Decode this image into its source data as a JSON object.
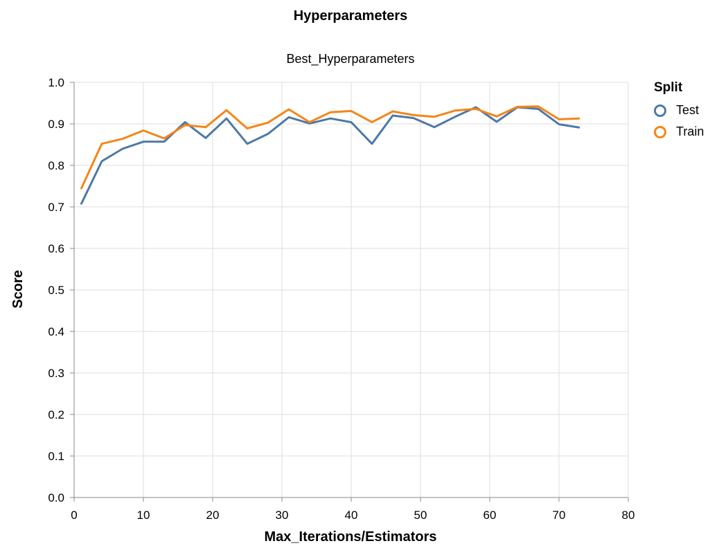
{
  "chart_data": {
    "type": "line",
    "title": "Hyperparameters",
    "subtitle": "Best_Hyperparameters",
    "xlabel": "Max_Iterations/Estimators",
    "ylabel": "Score",
    "xlim": [
      0,
      80
    ],
    "ylim": [
      0,
      1
    ],
    "x_ticks": [
      "0",
      "10",
      "20",
      "30",
      "40",
      "50",
      "60",
      "70",
      "80"
    ],
    "y_ticks": [
      "0.0",
      "0.1",
      "0.2",
      "0.3",
      "0.4",
      "0.5",
      "0.6",
      "0.7",
      "0.8",
      "0.9",
      "1.0"
    ],
    "grid": true,
    "legend_title": "Split",
    "legend_position": "right",
    "x": [
      1,
      4,
      7,
      10,
      13,
      16,
      19,
      22,
      25,
      28,
      31,
      34,
      37,
      40,
      43,
      46,
      49,
      52,
      55,
      58,
      61,
      64,
      67,
      70,
      73
    ],
    "series": [
      {
        "name": "Test",
        "color": "#4c78a8",
        "values": [
          0.706,
          0.81,
          0.84,
          0.857,
          0.857,
          0.904,
          0.866,
          0.913,
          0.852,
          0.876,
          0.916,
          0.901,
          0.913,
          0.904,
          0.852,
          0.92,
          0.914,
          0.892,
          0.917,
          0.94,
          0.905,
          0.94,
          0.936,
          0.899,
          0.891
        ]
      },
      {
        "name": "Train",
        "color": "#f58518",
        "values": [
          0.743,
          0.852,
          0.864,
          0.884,
          0.865,
          0.897,
          0.892,
          0.933,
          0.889,
          0.903,
          0.935,
          0.904,
          0.928,
          0.931,
          0.904,
          0.93,
          0.921,
          0.917,
          0.932,
          0.936,
          0.918,
          0.941,
          0.942,
          0.911,
          0.913
        ]
      }
    ]
  }
}
